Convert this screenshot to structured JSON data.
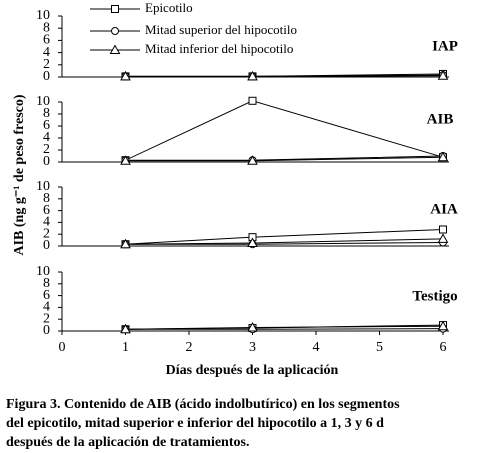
{
  "chart_data": [
    {
      "type": "line",
      "title": "IAP",
      "x": [
        1,
        3,
        6
      ],
      "xlim": [
        0,
        6
      ],
      "ylim": [
        0,
        10
      ],
      "yticks": [
        0,
        2,
        4,
        6,
        8,
        10
      ],
      "series": [
        {
          "name": "Epicotilo",
          "marker": "square",
          "color": "#000000",
          "values": [
            0.1,
            0.1,
            0.5
          ]
        },
        {
          "name": "Mitad superior del hipocotilo",
          "marker": "circle",
          "color": "#000000",
          "values": [
            0.1,
            0.1,
            0.3
          ]
        },
        {
          "name": "Mitad inferior del hipocotilo",
          "marker": "triangle",
          "color": "#000000",
          "values": [
            0.1,
            0.1,
            0.2
          ]
        }
      ]
    },
    {
      "type": "line",
      "title": "AIB",
      "x": [
        1,
        3,
        6
      ],
      "xlim": [
        0,
        6
      ],
      "ylim": [
        0,
        10
      ],
      "yticks": [
        0,
        2,
        4,
        6,
        8,
        10
      ],
      "series": [
        {
          "marker": "square",
          "color": "#000000",
          "values": [
            0.3,
            10.2,
            0.8
          ]
        },
        {
          "marker": "circle",
          "color": "#000000",
          "values": [
            0.3,
            0.3,
            1.0
          ]
        },
        {
          "marker": "triangle",
          "color": "#000000",
          "values": [
            0.2,
            0.2,
            0.8
          ]
        }
      ]
    },
    {
      "type": "line",
      "title": "AIA",
      "x": [
        1,
        3,
        6
      ],
      "xlim": [
        0,
        6
      ],
      "ylim": [
        0,
        10
      ],
      "yticks": [
        0,
        2,
        4,
        6,
        8,
        10
      ],
      "series": [
        {
          "marker": "square",
          "color": "#000000",
          "values": [
            0.3,
            1.5,
            2.8
          ]
        },
        {
          "marker": "circle",
          "color": "#000000",
          "values": [
            0.3,
            0.3,
            0.6
          ]
        },
        {
          "marker": "triangle",
          "color": "#000000",
          "values": [
            0.3,
            0.5,
            1.2
          ]
        }
      ]
    },
    {
      "type": "line",
      "title": "Testigo",
      "x": [
        1,
        3,
        6
      ],
      "xlim": [
        0,
        6
      ],
      "xticks": [
        0,
        1,
        2,
        3,
        4,
        5,
        6
      ],
      "ylim": [
        0,
        10
      ],
      "yticks": [
        0,
        2,
        4,
        6,
        8,
        10
      ],
      "x_label": "Días después de la aplicación",
      "series": [
        {
          "marker": "square",
          "color": "#000000",
          "values": [
            0.3,
            0.5,
            1.0
          ]
        },
        {
          "marker": "circle",
          "color": "#000000",
          "values": [
            0.3,
            0.3,
            0.4
          ]
        },
        {
          "marker": "triangle",
          "color": "#000000",
          "values": [
            0.3,
            0.6,
            0.8
          ]
        }
      ]
    }
  ],
  "y_label": "AIB (ng g⁻¹ de peso fresco)",
  "caption": [
    "Figura 3. Contenido de AIB (ácido indolbutírico) en los segmentos",
    "del epicotilo, mitad superior e inferior del hipocotilo a 1, 3 y 6 d",
    "después de la aplicación de tratamientos."
  ]
}
